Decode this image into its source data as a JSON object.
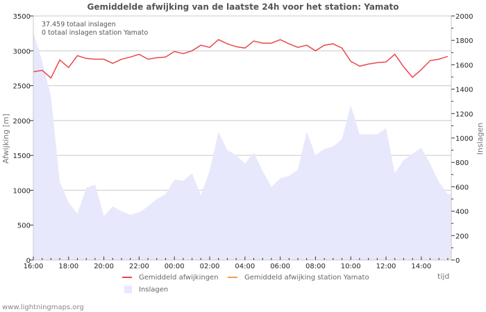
{
  "title": "Gemiddelde afwijking van de laatste 24h voor het station: Yamato",
  "annotations": [
    "37.459 totaal inslagen",
    "0 totaal inslagen station Yamato"
  ],
  "footer": "www.lightningmaps.org",
  "legend": {
    "avg_dev": "Gemiddeld afwijkingen",
    "station_dev": "Gemiddeld afwijking station Yamato",
    "strikes": "Inslagen"
  },
  "colors": {
    "avg_dev": "#e8474d",
    "station_dev": "#f0a050",
    "strikes": "#e8e8fc",
    "grid": "#c8c8c8"
  },
  "chart_data": {
    "type": "line",
    "title": "Gemiddelde afwijking van de laatste 24h voor het station: Yamato",
    "xlabel": "tijd",
    "ylabel": "Afwijking  [m]",
    "y2label": "Inslagen",
    "ylim": [
      0,
      3500
    ],
    "y2lim": [
      0,
      2000
    ],
    "grid": true,
    "legend_position": "bottom",
    "x_ticks": [
      "16:00",
      "18:00",
      "20:00",
      "22:00",
      "00:00",
      "02:00",
      "04:00",
      "06:00",
      "08:00",
      "10:00",
      "12:00",
      "14:00"
    ],
    "y_ticks": [
      0,
      500,
      1000,
      1500,
      2000,
      2500,
      3000,
      3500
    ],
    "y2_ticks": [
      0,
      200,
      400,
      600,
      800,
      1000,
      1200,
      1400,
      1600,
      1800,
      2000
    ],
    "x": [
      "16:00",
      "16:30",
      "17:00",
      "17:30",
      "18:00",
      "18:30",
      "19:00",
      "19:30",
      "20:00",
      "20:30",
      "21:00",
      "21:30",
      "22:00",
      "22:30",
      "23:00",
      "23:30",
      "00:00",
      "00:30",
      "01:00",
      "01:30",
      "02:00",
      "02:30",
      "03:00",
      "03:30",
      "04:00",
      "04:30",
      "05:00",
      "05:30",
      "06:00",
      "06:30",
      "07:00",
      "07:30",
      "08:00",
      "08:30",
      "09:00",
      "09:30",
      "10:00",
      "10:30",
      "11:00",
      "11:30",
      "12:00",
      "12:30",
      "13:00",
      "13:30",
      "14:00",
      "14:30",
      "15:00",
      "15:30"
    ],
    "series": [
      {
        "name": "Gemiddeld afwijkingen",
        "axis": "left",
        "values": [
          2700,
          2720,
          2610,
          2870,
          2760,
          2930,
          2890,
          2880,
          2880,
          2820,
          2880,
          2910,
          2950,
          2880,
          2900,
          2910,
          2990,
          2960,
          3000,
          3080,
          3050,
          3160,
          3100,
          3060,
          3040,
          3140,
          3110,
          3110,
          3160,
          3100,
          3050,
          3080,
          3000,
          3080,
          3100,
          3040,
          2850,
          2780,
          2810,
          2830,
          2840,
          2950,
          2770,
          2620,
          2730,
          2860,
          2880,
          2920
        ]
      },
      {
        "name": "Gemiddeld afwijking station Yamato",
        "axis": "left",
        "values": []
      },
      {
        "name": "Inslagen",
        "axis": "right",
        "type": "area",
        "values": [
          1870,
          1630,
          1340,
          640,
          470,
          380,
          590,
          620,
          360,
          440,
          400,
          370,
          390,
          440,
          500,
          540,
          660,
          650,
          710,
          530,
          730,
          1050,
          900,
          860,
          790,
          880,
          730,
          600,
          670,
          690,
          740,
          1050,
          860,
          910,
          930,
          990,
          1270,
          1030,
          1030,
          1030,
          1080,
          710,
          820,
          870,
          920,
          790,
          640,
          540
        ]
      }
    ]
  }
}
